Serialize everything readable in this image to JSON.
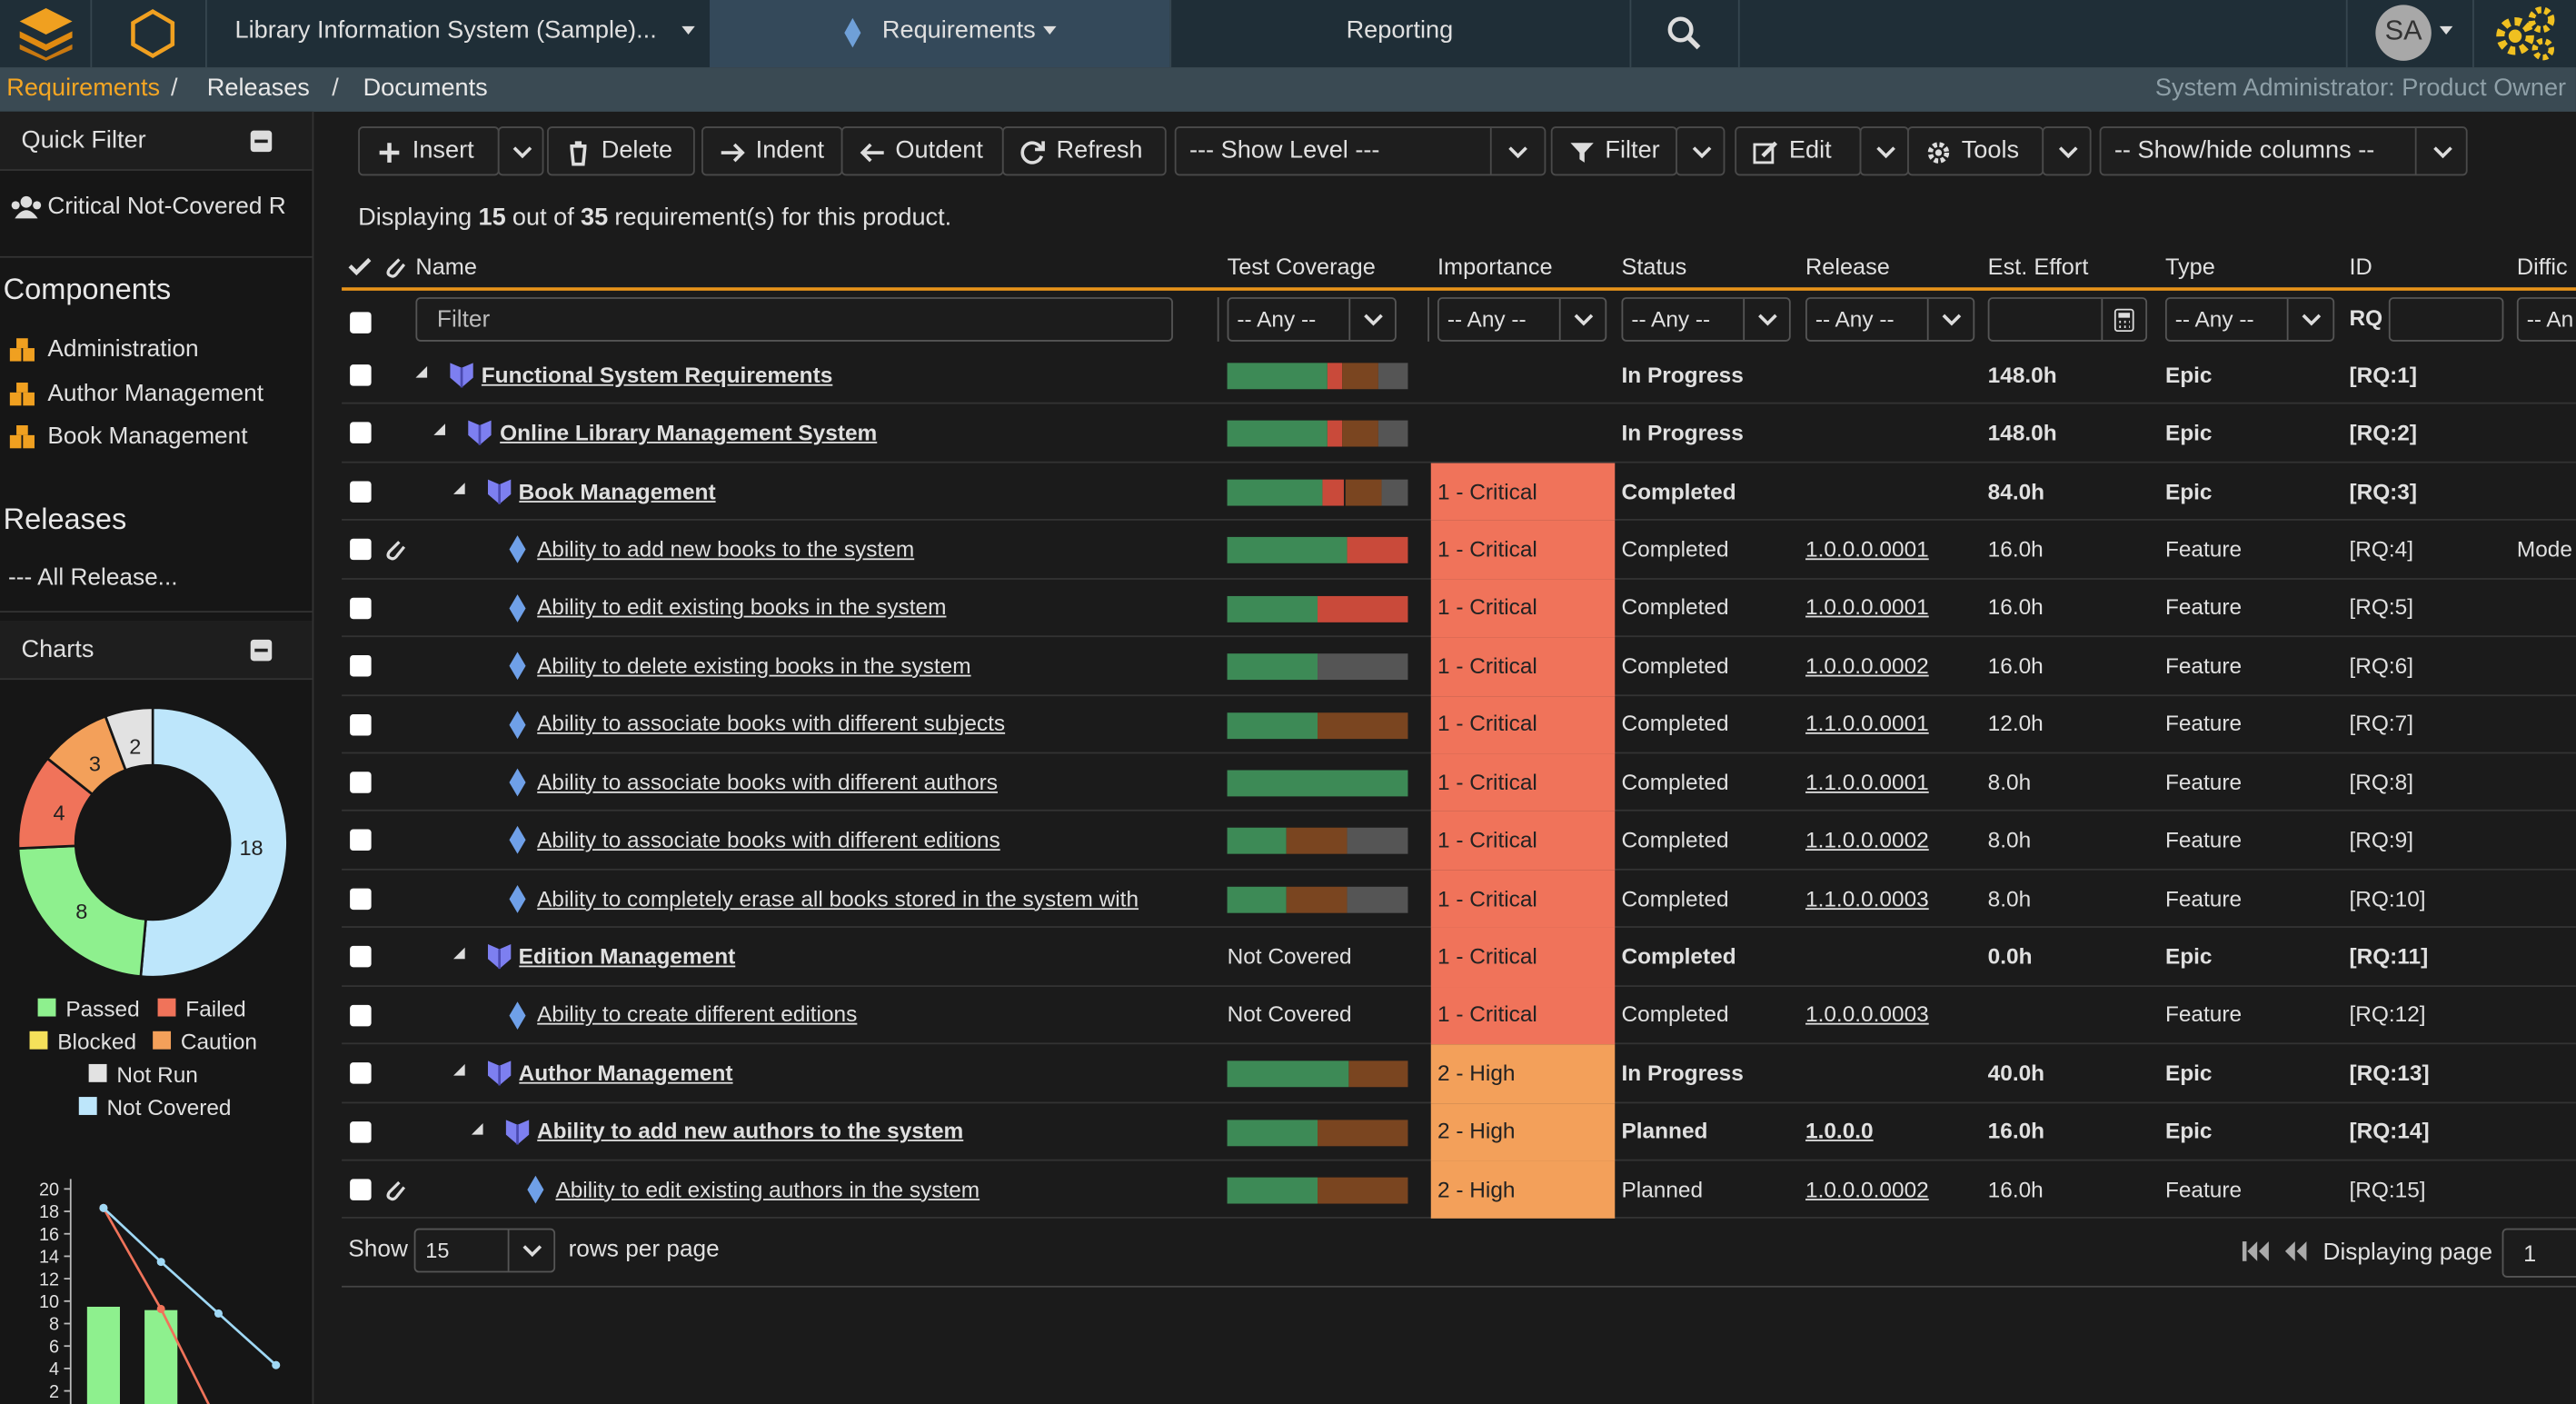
{
  "topbar": {
    "project": "Library Information System (Sample)...",
    "tabs": [
      "Requirements",
      "Reporting"
    ],
    "avatar": "SA"
  },
  "breadcrumb": {
    "items": [
      "Requirements",
      "Releases",
      "Documents"
    ],
    "separator": "/",
    "user": "System Administrator: Product Owner"
  },
  "sidebar": {
    "quick_filter": {
      "title": "Quick Filter",
      "items": [
        "Critical Not-Covered R"
      ]
    },
    "components": {
      "title": "Components",
      "items": [
        "Administration",
        "Author Management",
        "Book Management"
      ]
    },
    "releases": {
      "title": "Releases",
      "items": [
        "--- All Release..."
      ]
    },
    "charts": {
      "title": "Charts"
    }
  },
  "chart_data": [
    {
      "type": "pie",
      "categories": [
        "Passed",
        "Failed",
        "Blocked",
        "Caution",
        "Not Run",
        "Not Covered"
      ],
      "values": [
        8,
        4,
        0,
        3,
        2,
        18
      ],
      "colors": [
        "#8ef08e",
        "#f0735a",
        "#f5e15a",
        "#f3a05a",
        "#e2e2e2",
        "#bde6fb"
      ]
    },
    {
      "type": "bar",
      "categories": [
        null,
        null,
        null,
        null
      ],
      "ylim": [
        0,
        20
      ],
      "yticks": [
        2,
        4,
        6,
        8,
        10,
        12,
        14,
        16,
        18,
        20
      ],
      "series": [
        {
          "type": "bar",
          "color": "#8ef08e",
          "values": [
            9.5,
            9.2,
            null,
            null
          ]
        },
        {
          "type": "line",
          "color": "#f0735a",
          "values": [
            18.3,
            9.3,
            null,
            null
          ]
        },
        {
          "type": "line",
          "color": "#9fd8f5",
          "values": [
            18.3,
            13.5,
            8.9,
            4.3
          ]
        }
      ]
    }
  ],
  "toolbar": {
    "insert": "Insert",
    "delete": "Delete",
    "indent": "Indent",
    "outdent": "Outdent",
    "refresh": "Refresh",
    "show_level": "--- Show Level ---",
    "filter": "Filter",
    "edit": "Edit",
    "tools": "Tools",
    "columns": "-- Show/hide columns --"
  },
  "summary": {
    "prefix": "Displaying",
    "shown": 15,
    "middle": "out of",
    "total": 35,
    "suffix": "requirement(s) for this product."
  },
  "table": {
    "columns": [
      "Name",
      "Test Coverage",
      "Importance",
      "Status",
      "Release",
      "Est. Effort",
      "Type",
      "ID",
      "Diffic"
    ],
    "filters": {
      "name": "Filter",
      "any": "-- Any --",
      "id_prefix": "RQ",
      "difficulty": "-- An"
    },
    "coverage_colors": [
      "#3d8a56",
      "#c94a3a",
      "#7a4520",
      "#555555"
    ],
    "rows": [
      {
        "level": 0,
        "kind": "epic",
        "name": "Functional System Requirements",
        "coverage": [
          55,
          9,
          20,
          16
        ],
        "status": "In Progress",
        "effort": "148.0h",
        "type": "Epic",
        "id": "[RQ:1]"
      },
      {
        "level": 1,
        "kind": "epic",
        "name": "Online Library Management System",
        "coverage": [
          55,
          9,
          20,
          16
        ],
        "status": "In Progress",
        "effort": "148.0h",
        "type": "Epic",
        "id": "[RQ:2]"
      },
      {
        "level": 2,
        "kind": "epic",
        "name": "Book Management",
        "coverage": [
          53,
          12,
          20,
          15
        ],
        "importance": "1 - Critical",
        "importance_color": "#f0735a",
        "status": "Completed",
        "effort": "84.0h",
        "type": "Epic",
        "id": "[RQ:3]"
      },
      {
        "level": 3,
        "kind": "feature",
        "name": "Ability to add new books to the system",
        "attachment": true,
        "coverage": [
          66,
          34,
          0,
          0
        ],
        "importance": "1 - Critical",
        "importance_color": "#f0735a",
        "status": "Completed",
        "release": "1.0.0.0.0001",
        "effort": "16.0h",
        "type": "Feature",
        "id": "[RQ:4]",
        "difficulty": "Mode"
      },
      {
        "level": 3,
        "kind": "feature",
        "name": "Ability to edit existing books in the system",
        "coverage": [
          50,
          50,
          0,
          0
        ],
        "importance": "1 - Critical",
        "importance_color": "#f0735a",
        "status": "Completed",
        "release": "1.0.0.0.0001",
        "effort": "16.0h",
        "type": "Feature",
        "id": "[RQ:5]"
      },
      {
        "level": 3,
        "kind": "feature",
        "name": "Ability to delete existing books in the system",
        "coverage": [
          50,
          0,
          0,
          50
        ],
        "importance": "1 - Critical",
        "importance_color": "#f0735a",
        "status": "Completed",
        "release": "1.0.0.0.0002",
        "effort": "16.0h",
        "type": "Feature",
        "id": "[RQ:6]"
      },
      {
        "level": 3,
        "kind": "feature",
        "name": "Ability to associate books with different subjects",
        "coverage": [
          50,
          0,
          50,
          0
        ],
        "importance": "1 - Critical",
        "importance_color": "#f0735a",
        "status": "Completed",
        "release": "1.1.0.0.0001",
        "effort": "12.0h",
        "type": "Feature",
        "id": "[RQ:7]"
      },
      {
        "level": 3,
        "kind": "feature",
        "name": "Ability to associate books with different authors",
        "coverage": [
          100,
          0,
          0,
          0
        ],
        "importance": "1 - Critical",
        "importance_color": "#f0735a",
        "status": "Completed",
        "release": "1.1.0.0.0001",
        "effort": "8.0h",
        "type": "Feature",
        "id": "[RQ:8]"
      },
      {
        "level": 3,
        "kind": "feature",
        "name": "Ability to associate books with different editions",
        "coverage": [
          33,
          0,
          33,
          34
        ],
        "importance": "1 - Critical",
        "importance_color": "#f0735a",
        "status": "Completed",
        "release": "1.1.0.0.0002",
        "effort": "8.0h",
        "type": "Feature",
        "id": "[RQ:9]"
      },
      {
        "level": 3,
        "kind": "feature",
        "name": "Ability to completely erase all books stored in the system with",
        "coverage": [
          33,
          0,
          33,
          34
        ],
        "importance": "1 - Critical",
        "importance_color": "#f0735a",
        "status": "Completed",
        "release": "1.1.0.0.0003",
        "effort": "8.0h",
        "type": "Feature",
        "id": "[RQ:10]"
      },
      {
        "level": 2,
        "kind": "epic",
        "name": "Edition Management",
        "coverage_text": "Not Covered",
        "importance": "1 - Critical",
        "importance_color": "#f0735a",
        "status": "Completed",
        "effort": "0.0h",
        "type": "Epic",
        "id": "[RQ:11]"
      },
      {
        "level": 3,
        "kind": "feature",
        "name": "Ability to create different editions",
        "coverage_text": "Not Covered",
        "importance": "1 - Critical",
        "importance_color": "#f0735a",
        "status": "Completed",
        "release": "1.0.0.0.0003",
        "type": "Feature",
        "id": "[RQ:12]"
      },
      {
        "level": 2,
        "kind": "epic",
        "name": "Author Management",
        "coverage": [
          67,
          0,
          33,
          0
        ],
        "importance": "2 - High",
        "importance_color": "#f3a05a",
        "status": "In Progress",
        "effort": "40.0h",
        "type": "Epic",
        "id": "[RQ:13]"
      },
      {
        "level": 3,
        "kind": "epic",
        "name": "Ability to add new authors to the system",
        "coverage": [
          50,
          0,
          50,
          0
        ],
        "importance": "2 - High",
        "importance_color": "#f3a05a",
        "status": "Planned",
        "release": "1.0.0.0",
        "effort": "16.0h",
        "type": "Epic",
        "id": "[RQ:14]"
      },
      {
        "level": 4,
        "kind": "feature",
        "name": "Ability to edit existing authors in the system",
        "attachment": true,
        "coverage": [
          50,
          0,
          50,
          0
        ],
        "importance": "2 - High",
        "importance_color": "#f3a05a",
        "status": "Planned",
        "release": "1.0.0.0.0002",
        "effort": "16.0h",
        "type": "Feature",
        "id": "[RQ:15]"
      }
    ]
  },
  "pagination": {
    "show": "Show",
    "per_page": 15,
    "rows_label": "rows per page",
    "page_label": "Displaying page",
    "page": 1
  }
}
